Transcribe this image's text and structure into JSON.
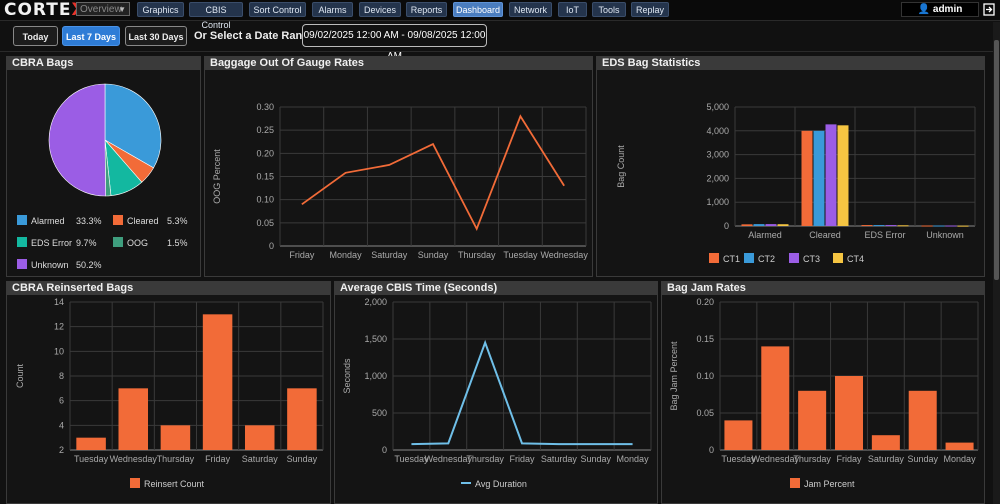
{
  "nav": {
    "logo": "CORTEX",
    "view_select": "Overview",
    "buttons": [
      {
        "label": "Graphics",
        "active": false
      },
      {
        "label": "CBIS Control",
        "active": false
      },
      {
        "label": "Sort Control",
        "active": false
      },
      {
        "label": "Alarms",
        "active": false
      },
      {
        "label": "Devices",
        "active": false
      },
      {
        "label": "Reports",
        "active": false
      },
      {
        "label": "Dashboard",
        "active": true
      },
      {
        "label": "Network",
        "active": false
      },
      {
        "label": "IoT",
        "active": false
      },
      {
        "label": "Tools",
        "active": false
      },
      {
        "label": "Replay",
        "active": false
      }
    ],
    "user": "admin"
  },
  "range": {
    "today": "Today",
    "last7": "Last 7 Days",
    "last30": "Last 30 Days",
    "active": "Last 7 Days",
    "label": "Or Select a Date Range:",
    "value": "09/02/2025 12:00 AM - 09/08/2025 12:00 AM"
  },
  "panels": {
    "cbra_bags": "CBRA Bags",
    "oog": "Baggage Out Of Gauge Rates",
    "eds": "EDS Bag Statistics",
    "reinserted": "CBRA Reinserted Bags",
    "cbis_time": "Average CBIS Time (Seconds)",
    "jam": "Bag Jam Rates"
  },
  "chart_data": [
    {
      "type": "pie",
      "title": "CBRA Bags",
      "slices": [
        {
          "name": "Alarmed",
          "percent": 33.3,
          "label": "33.3%",
          "color": "#3a9ad9"
        },
        {
          "name": "Cleared",
          "percent": 5.3,
          "label": "5.3%",
          "color": "#f26b38"
        },
        {
          "name": "EDS Error",
          "percent": 9.7,
          "label": "9.7%",
          "color": "#13b8a0"
        },
        {
          "name": "OOG",
          "percent": 1.5,
          "label": "1.5%",
          "color": "#3f9e7e"
        },
        {
          "name": "Unknown",
          "percent": 50.2,
          "label": "50.2%",
          "color": "#9b5de5"
        }
      ]
    },
    {
      "type": "line",
      "title": "Baggage Out Of Gauge Rates",
      "categories": [
        "Friday",
        "Monday",
        "Saturday",
        "Sunday",
        "Thursday",
        "Tuesday",
        "Wednesday"
      ],
      "values": [
        0.09,
        0.158,
        0.175,
        0.22,
        0.037,
        0.28,
        0.13
      ],
      "ylabel": "OOG Percent",
      "ylim": [
        0,
        0.3
      ],
      "yticks": [
        "0",
        "0.05",
        "0.10",
        "0.15",
        "0.20",
        "0.25",
        "0.30"
      ],
      "color": "#f26b38"
    },
    {
      "type": "bar",
      "title": "EDS Bag Statistics",
      "categories": [
        "Alarmed",
        "Cleared",
        "EDS Error",
        "Unknown"
      ],
      "series": [
        {
          "name": "CT1",
          "color": "#f26b38",
          "values": [
            70,
            4000,
            40,
            20
          ]
        },
        {
          "name": "CT2",
          "color": "#3a9ad9",
          "values": [
            80,
            4000,
            40,
            20
          ]
        },
        {
          "name": "CT3",
          "color": "#9b5de5",
          "values": [
            80,
            4270,
            40,
            20
          ]
        },
        {
          "name": "CT4",
          "color": "#f5c542",
          "values": [
            75,
            4230,
            30,
            15
          ]
        }
      ],
      "ylabel": "Bag Count",
      "ylim": [
        0,
        5000
      ],
      "yticks": [
        "0",
        "1,000",
        "2,000",
        "3,000",
        "4,000",
        "5,000"
      ]
    },
    {
      "type": "bar",
      "title": "CBRA Reinserted Bags",
      "categories": [
        "Tuesday",
        "Wednesday",
        "Thursday",
        "Friday",
        "Saturday",
        "Sunday"
      ],
      "values": [
        3,
        7,
        4,
        13,
        4,
        7
      ],
      "ylabel": "Count",
      "ylim": [
        2,
        14
      ],
      "yticks": [
        "2",
        "4",
        "6",
        "8",
        "10",
        "12",
        "14"
      ],
      "legend": "Reinsert Count",
      "color": "#f26b38"
    },
    {
      "type": "line",
      "title": "Average CBIS Time (Seconds)",
      "categories": [
        "Tuesday",
        "Wednesday",
        "Thursday",
        "Friday",
        "Saturday",
        "Sunday",
        "Monday"
      ],
      "values": [
        80,
        90,
        1450,
        90,
        80,
        80,
        80
      ],
      "ylabel": "Seconds",
      "ylim": [
        0,
        2000
      ],
      "yticks": [
        "0",
        "500",
        "1,000",
        "1,500",
        "2,000"
      ],
      "legend": "Avg Duration",
      "color": "#6fbfe8"
    },
    {
      "type": "bar",
      "title": "Bag Jam Rates",
      "categories": [
        "Tuesday",
        "Wednesday",
        "Thursday",
        "Friday",
        "Saturday",
        "Sunday",
        "Monday"
      ],
      "values": [
        0.04,
        0.14,
        0.08,
        0.1,
        0.02,
        0.08,
        0.01
      ],
      "ylabel": "Bag Jam Percent",
      "ylim": [
        0,
        0.2
      ],
      "yticks": [
        "0",
        "0.05",
        "0.10",
        "0.15",
        "0.20"
      ],
      "legend": "Jam Percent",
      "color": "#f26b38"
    }
  ]
}
